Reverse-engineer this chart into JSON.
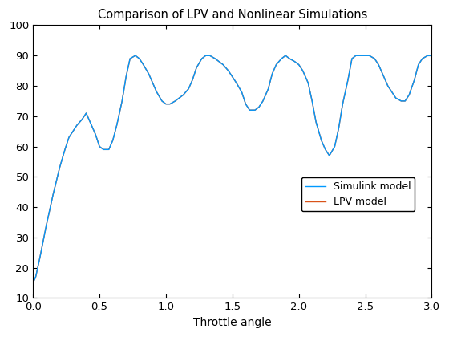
{
  "title": "Comparison of LPV and Nonlinear Simulations",
  "xlabel": "Throttle angle",
  "xlim": [
    0,
    3
  ],
  "ylim": [
    10,
    100
  ],
  "xticks": [
    0,
    0.5,
    1.0,
    1.5,
    2.0,
    2.5,
    3.0
  ],
  "yticks": [
    10,
    20,
    30,
    40,
    50,
    60,
    70,
    80,
    90,
    100
  ],
  "legend_labels": [
    "Simulink model",
    "LPV model"
  ],
  "simulink_color": "#0099FF",
  "lpv_color": "#D95319",
  "line_width": 1.0,
  "x_data": [
    0.0,
    0.02,
    0.05,
    0.1,
    0.15,
    0.2,
    0.24,
    0.27,
    0.3,
    0.33,
    0.37,
    0.4,
    0.43,
    0.47,
    0.5,
    0.53,
    0.57,
    0.6,
    0.63,
    0.67,
    0.7,
    0.73,
    0.77,
    0.8,
    0.83,
    0.87,
    0.9,
    0.93,
    0.97,
    1.0,
    1.03,
    1.07,
    1.1,
    1.13,
    1.17,
    1.2,
    1.23,
    1.27,
    1.3,
    1.33,
    1.37,
    1.4,
    1.43,
    1.47,
    1.5,
    1.53,
    1.57,
    1.6,
    1.63,
    1.67,
    1.7,
    1.73,
    1.77,
    1.8,
    1.83,
    1.87,
    1.9,
    1.93,
    1.97,
    2.0,
    2.03,
    2.07,
    2.1,
    2.13,
    2.17,
    2.2,
    2.23,
    2.27,
    2.3,
    2.33,
    2.37,
    2.4,
    2.43,
    2.47,
    2.5,
    2.53,
    2.57,
    2.6,
    2.63,
    2.67,
    2.7,
    2.73,
    2.77,
    2.8,
    2.83,
    2.87,
    2.9,
    2.93,
    2.97,
    3.0
  ],
  "y_data": [
    15,
    17,
    23,
    34,
    44,
    53,
    59,
    63,
    65,
    67,
    69,
    71,
    68,
    64,
    60,
    59,
    59,
    62,
    67,
    75,
    83,
    89,
    90,
    89,
    87,
    84,
    81,
    78,
    75,
    74,
    74,
    75,
    76,
    77,
    79,
    82,
    86,
    89,
    90,
    90,
    89,
    88,
    87,
    85,
    83,
    81,
    78,
    74,
    72,
    72,
    73,
    75,
    79,
    84,
    87,
    89,
    90,
    89,
    88,
    87,
    85,
    81,
    75,
    68,
    62,
    59,
    57,
    60,
    66,
    74,
    82,
    89,
    90,
    90,
    90,
    90,
    89,
    87,
    84,
    80,
    78,
    76,
    75,
    75,
    77,
    82,
    87,
    89,
    90,
    90
  ],
  "figsize": [
    5.6,
    4.2
  ],
  "dpi": 100
}
